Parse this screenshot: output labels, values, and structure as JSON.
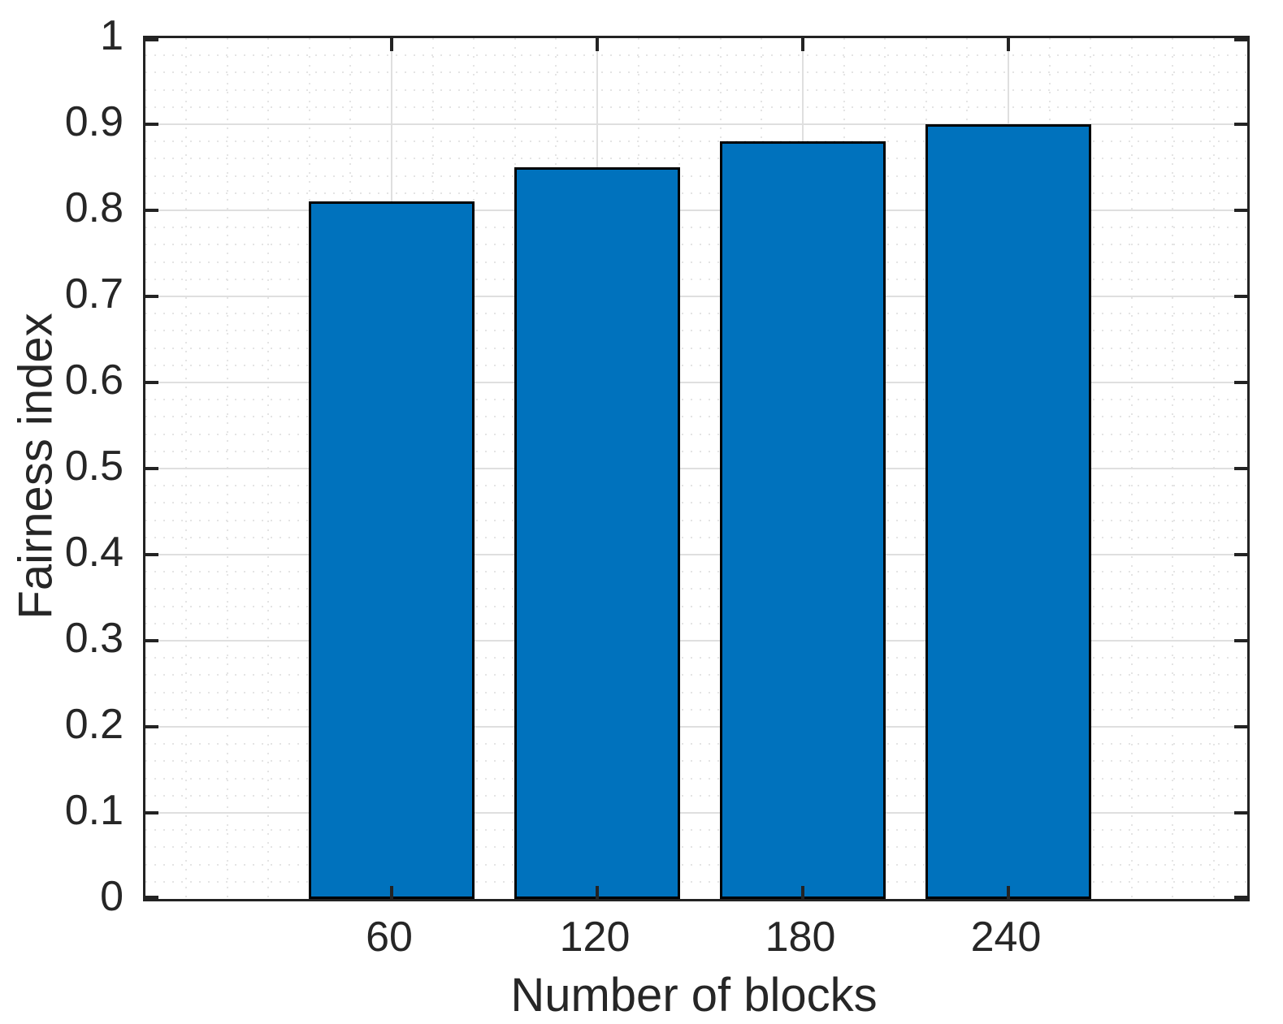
{
  "chart_data": {
    "type": "bar",
    "title": "",
    "categories": [
      "60",
      "120",
      "180",
      "240"
    ],
    "values": [
      0.81,
      0.85,
      0.88,
      0.9
    ],
    "xlabel": "Number of blocks",
    "ylabel": "Fairness index",
    "ylim": [
      0,
      1
    ],
    "ytick_values": [
      0,
      0.1,
      0.2,
      0.3,
      0.4,
      0.5,
      0.6,
      0.7,
      0.8,
      0.9,
      1
    ],
    "ytick_labels": [
      "0",
      "0.1",
      "0.2",
      "0.3",
      "0.4",
      "0.5",
      "0.6",
      "0.7",
      "0.8",
      "0.9",
      "1"
    ],
    "y_minor_step": 0.02,
    "x_minor_divisions_per_category": 5,
    "grid": "on",
    "minor_grid": "on",
    "legend": "none",
    "bar_fill_color": "#0072BD",
    "bar_edge_color": "#000000",
    "axis_box_color": "#232323",
    "major_grid_color": "#dfdfdf",
    "minor_grid_color": "#e4e4e4",
    "tick_label_color": "#262626",
    "background_color": "#ffffff"
  }
}
